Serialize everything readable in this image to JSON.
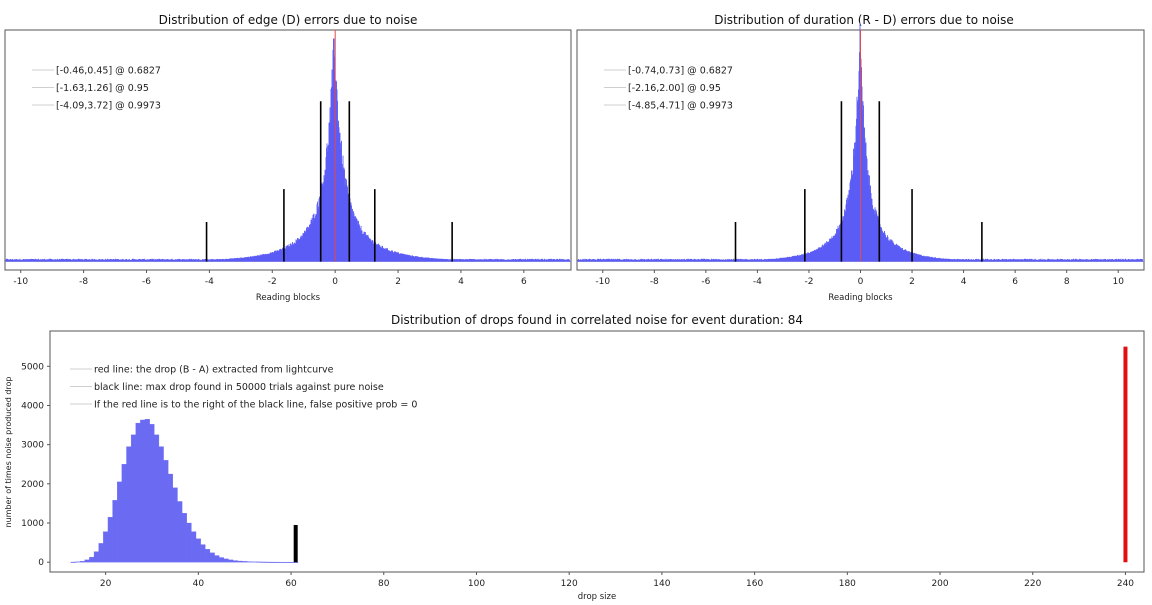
{
  "chart_data": [
    {
      "type": "histogram",
      "title": "Distribution of edge (D) errors due to noise",
      "xlabel": "Reading blocks",
      "ylabel": "",
      "xlim": [
        -10.5,
        7.5
      ],
      "xticks": [
        -10,
        -8,
        -6,
        -4,
        -2,
        0,
        2,
        4,
        6
      ],
      "yaxis_visible": false,
      "grid": false,
      "legend_position": "top-left",
      "distribution": {
        "center": -0.03,
        "peak_relative": 1.0,
        "shape": "sharply peaked, heavy tailed"
      },
      "center_line": {
        "x": 0,
        "color": "#e8474c"
      },
      "legend": [
        "[-0.46,0.45] @ 0.6827",
        "[-1.63,1.26] @ 0.95",
        "[-4.09,3.72] @ 0.9973"
      ],
      "confidence_bounds": [
        {
          "low": -0.46,
          "high": 0.45,
          "level": 0.6827,
          "relative_height": 0.73
        },
        {
          "low": -1.63,
          "high": 1.26,
          "level": 0.95,
          "relative_height": 0.33
        },
        {
          "low": -4.09,
          "high": 3.72,
          "level": 0.9973,
          "relative_height": 0.18
        }
      ]
    },
    {
      "type": "histogram",
      "title": "Distribution of duration (R - D) errors due to noise",
      "xlabel": "Reading blocks",
      "ylabel": "",
      "xlim": [
        -11,
        11
      ],
      "xticks": [
        -10,
        -8,
        -6,
        -4,
        -2,
        0,
        2,
        4,
        6,
        8,
        10
      ],
      "yaxis_visible": false,
      "grid": false,
      "legend_position": "top-left",
      "distribution": {
        "center": -0.02,
        "peak_relative": 1.0,
        "shape": "sharply peaked, heavy tailed"
      },
      "center_line": {
        "x": 0,
        "color": "#e8474c"
      },
      "legend": [
        "[-0.74,0.73] @ 0.6827",
        "[-2.16,2.00] @ 0.95",
        "[-4.85,4.71] @ 0.9973"
      ],
      "confidence_bounds": [
        {
          "low": -0.74,
          "high": 0.73,
          "level": 0.6827,
          "relative_height": 0.73
        },
        {
          "low": -2.16,
          "high": 2.0,
          "level": 0.95,
          "relative_height": 0.33
        },
        {
          "low": -4.85,
          "high": 4.71,
          "level": 0.9973,
          "relative_height": 0.18
        }
      ]
    },
    {
      "type": "bar",
      "title": "Distribution of drops found in correlated noise for event duration: 84",
      "xlabel": "drop size",
      "ylabel": "number of times noise produced drop",
      "xlim": [
        8,
        244
      ],
      "ylim": [
        -250,
        5900
      ],
      "xticks": [
        20,
        40,
        60,
        80,
        100,
        120,
        140,
        160,
        180,
        200,
        220,
        240
      ],
      "yticks": [
        0,
        1000,
        2000,
        3000,
        4000,
        5000
      ],
      "grid": false,
      "legend_position": "top-left",
      "legend": [
        "red line: the drop (B - A) extracted from lightcurve",
        "black line: max drop found in 50000 trials against pure noise",
        "If the red line is to the right of the black line, false positive prob = 0"
      ],
      "bar_width": 1,
      "x": [
        13,
        14,
        15,
        16,
        17,
        18,
        19,
        20,
        21,
        22,
        23,
        24,
        25,
        26,
        27,
        28,
        29,
        30,
        31,
        32,
        33,
        34,
        35,
        36,
        37,
        38,
        39,
        40,
        41,
        42,
        43,
        44,
        45,
        46,
        47,
        48,
        49,
        50,
        51,
        52,
        53,
        54,
        55,
        56,
        57,
        58,
        59,
        60,
        61
      ],
      "values": [
        5,
        12,
        25,
        60,
        130,
        270,
        480,
        780,
        1150,
        1580,
        2050,
        2500,
        2950,
        3250,
        3550,
        3630,
        3650,
        3520,
        3250,
        2950,
        2600,
        2250,
        1900,
        1550,
        1250,
        1000,
        780,
        600,
        450,
        330,
        240,
        170,
        120,
        85,
        60,
        42,
        30,
        22,
        16,
        12,
        9,
        7,
        5,
        4,
        3,
        2,
        2,
        1,
        1
      ],
      "markers": [
        {
          "name": "max drop in pure noise",
          "x": 61,
          "height": 950,
          "color": "#000000"
        },
        {
          "name": "drop extracted from lightcurve",
          "x": 240,
          "height": 5500,
          "color": "#e01010"
        }
      ]
    }
  ]
}
